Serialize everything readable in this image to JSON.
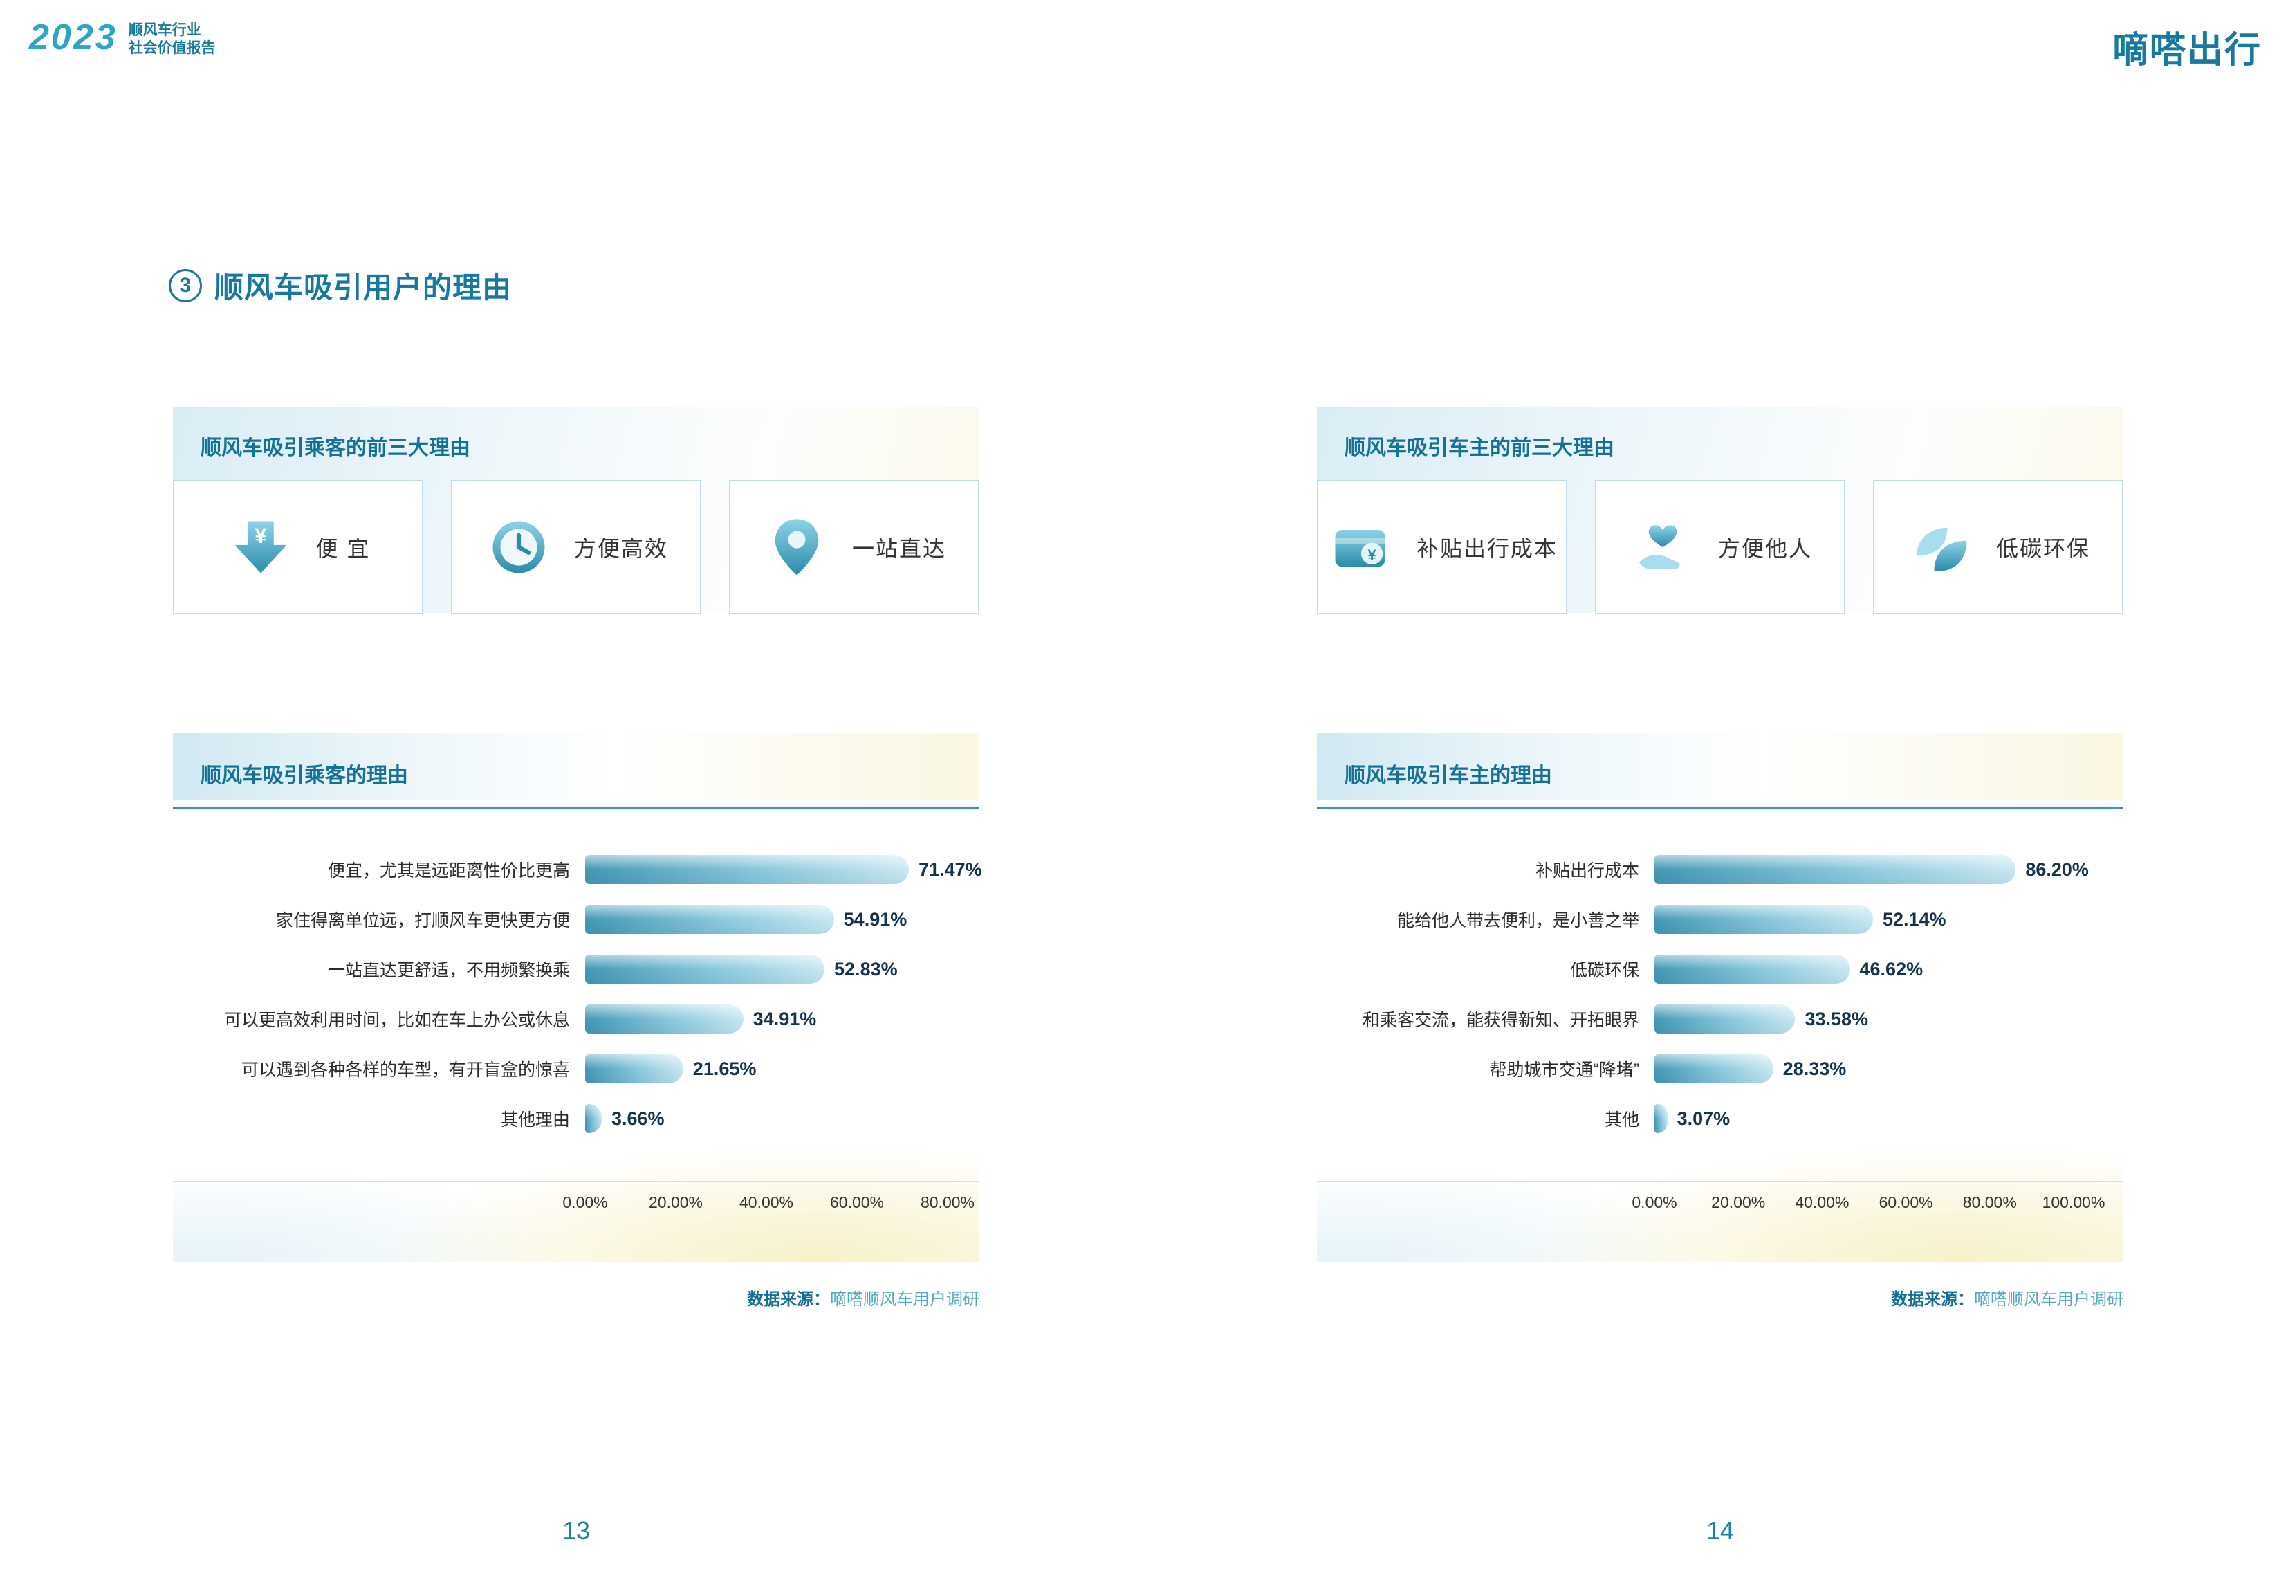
{
  "header": {
    "logo_year": "2023",
    "logo_line1": "顺风车行业",
    "logo_line2": "社会价值报告",
    "brand": "嘀嗒出行"
  },
  "section": {
    "number": "3",
    "title": "顺风车吸引用户的理由"
  },
  "colors": {
    "accent": "#1778a0",
    "bar_start": "#4498b5",
    "bar_end": "#c9e8f2",
    "title_teal": "#15719a"
  },
  "pages": [
    {
      "page_number": "13",
      "top_card": {
        "title": "顺风车吸引乘客的前三大理由",
        "items": [
          {
            "icon": "yuan-down-arrow-icon",
            "label": "便 宜"
          },
          {
            "icon": "clock-icon",
            "label": "方便高效"
          },
          {
            "icon": "location-pin-icon",
            "label": "一站直达"
          }
        ]
      },
      "source_label": "数据来源：",
      "source_value": "嘀嗒顺风车用户调研"
    },
    {
      "page_number": "14",
      "top_card": {
        "title": "顺风车吸引车主的前三大理由",
        "items": [
          {
            "icon": "wallet-yuan-icon",
            "label": "补贴出行成本"
          },
          {
            "icon": "hand-heart-icon",
            "label": "方便他人"
          },
          {
            "icon": "leaf-icon",
            "label": "低碳环保"
          }
        ]
      },
      "source_label": "数据来源：",
      "source_value": "嘀嗒顺风车用户调研"
    }
  ],
  "chart_data": [
    {
      "type": "bar",
      "orientation": "horizontal",
      "title": "顺风车吸引乘客的理由",
      "categories": [
        "便宜，尤其是远距离性价比更高",
        "家住得离单位远，打顺风车更快更方便",
        "一站直达更舒适，不用频繁换乘",
        "可以更高效利用时间，比如在车上办公或休息",
        "可以遇到各种各样的车型，有开盲盒的惊喜",
        "其他理由"
      ],
      "values": [
        71.47,
        54.91,
        52.83,
        34.91,
        21.65,
        3.66
      ],
      "value_labels": [
        "71.47%",
        "54.91%",
        "52.83%",
        "34.91%",
        "21.65%",
        "3.66%"
      ],
      "xlabel": "",
      "ylabel": "",
      "xlim": [
        0,
        80
      ],
      "x_ticks": [
        "0.00%",
        "20.00%",
        "40.00%",
        "60.00%",
        "80.00%"
      ],
      "grid": false,
      "legend": false
    },
    {
      "type": "bar",
      "orientation": "horizontal",
      "title": "顺风车吸引车主的理由",
      "categories": [
        "补贴出行成本",
        "能给他人带去便利，是小善之举",
        "低碳环保",
        "和乘客交流，能获得新知、开拓眼界",
        "帮助城市交通“降堵”",
        "其他"
      ],
      "values": [
        86.2,
        52.14,
        46.62,
        33.58,
        28.33,
        3.07
      ],
      "value_labels": [
        "86.20%",
        "52.14%",
        "46.62%",
        "33.58%",
        "28.33%",
        "3.07%"
      ],
      "xlabel": "",
      "ylabel": "",
      "xlim": [
        0,
        100
      ],
      "x_ticks": [
        "0.00%",
        "20.00%",
        "40.00%",
        "60.00%",
        "80.00%",
        "100.00%"
      ],
      "grid": false,
      "legend": false
    }
  ]
}
